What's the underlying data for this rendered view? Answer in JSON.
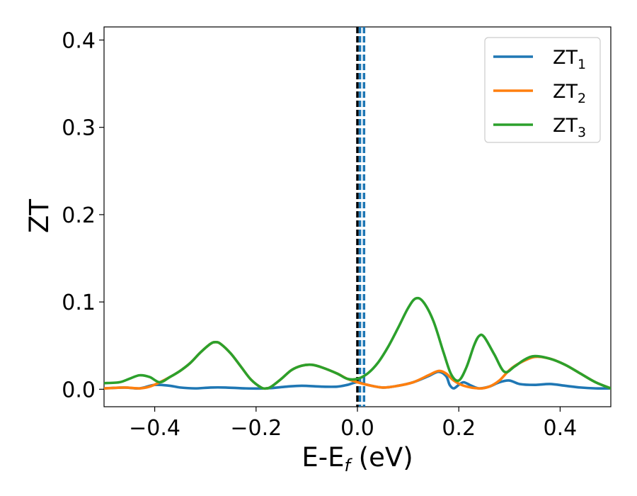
{
  "chart_data": {
    "type": "line",
    "xlabel": {
      "main": "E-E",
      "sub": "f",
      "unit": " (eV)"
    },
    "ylabel": "ZT",
    "xlim": [
      -0.5,
      0.5
    ],
    "ylim": [
      -0.02,
      0.415
    ],
    "xticks": [
      -0.4,
      -0.2,
      0.0,
      0.2,
      0.4
    ],
    "xtick_labels": [
      "−0.4",
      "−0.2",
      "0.0",
      "0.2",
      "0.4"
    ],
    "yticks": [
      0.0,
      0.1,
      0.2,
      0.3,
      0.4
    ],
    "ytick_labels": [
      "0.0",
      "0.1",
      "0.2",
      "0.3",
      "0.4"
    ],
    "grid": false,
    "legend_position": "top-right",
    "vlines": [
      {
        "x": 0.0,
        "color": "#000000",
        "style": "dashed"
      },
      {
        "x": 0.005,
        "color": "#1f77b4",
        "style": "dashed"
      },
      {
        "x": 0.013,
        "color": "#1f77b4",
        "style": "dashed"
      }
    ],
    "series": [
      {
        "name": "ZT",
        "sub": "1",
        "color": "#1f77b4",
        "points": [
          [
            -0.5,
            0.001
          ],
          [
            -0.46,
            0.002
          ],
          [
            -0.43,
            0.001
          ],
          [
            -0.4,
            0.005
          ],
          [
            -0.37,
            0.004
          ],
          [
            -0.35,
            0.002
          ],
          [
            -0.32,
            0.001
          ],
          [
            -0.29,
            0.002
          ],
          [
            -0.26,
            0.002
          ],
          [
            -0.22,
            0.001
          ],
          [
            -0.18,
            0.001
          ],
          [
            -0.14,
            0.003
          ],
          [
            -0.11,
            0.004
          ],
          [
            -0.07,
            0.003
          ],
          [
            -0.04,
            0.003
          ],
          [
            -0.02,
            0.005
          ],
          [
            0.0,
            0.008
          ],
          [
            0.02,
            0.005
          ],
          [
            0.05,
            0.002
          ],
          [
            0.08,
            0.004
          ],
          [
            0.11,
            0.008
          ],
          [
            0.14,
            0.015
          ],
          [
            0.16,
            0.02
          ],
          [
            0.175,
            0.015
          ],
          [
            0.182,
            0.005
          ],
          [
            0.19,
            0.001
          ],
          [
            0.2,
            0.005
          ],
          [
            0.21,
            0.008
          ],
          [
            0.225,
            0.004
          ],
          [
            0.24,
            0.001
          ],
          [
            0.26,
            0.003
          ],
          [
            0.28,
            0.008
          ],
          [
            0.3,
            0.01
          ],
          [
            0.32,
            0.006
          ],
          [
            0.35,
            0.005
          ],
          [
            0.38,
            0.006
          ],
          [
            0.41,
            0.004
          ],
          [
            0.44,
            0.002
          ],
          [
            0.47,
            0.001
          ],
          [
            0.5,
            0.001
          ]
        ]
      },
      {
        "name": "ZT",
        "sub": "2",
        "color": "#ff7f0e",
        "points": [
          [
            -0.5,
            0.001
          ],
          [
            -0.46,
            0.002
          ],
          [
            -0.43,
            0.001
          ],
          [
            -0.41,
            0.003
          ],
          [
            -0.39,
            0.008
          ],
          [
            -0.37,
            0.014
          ],
          [
            -0.35,
            0.021
          ],
          [
            -0.33,
            0.03
          ],
          [
            -0.31,
            0.042
          ],
          [
            -0.29,
            0.052
          ],
          [
            -0.28,
            0.054
          ],
          [
            -0.27,
            0.052
          ],
          [
            -0.25,
            0.041
          ],
          [
            -0.23,
            0.026
          ],
          [
            -0.21,
            0.011
          ],
          [
            -0.19,
            0.002
          ],
          [
            -0.18,
            0.001
          ],
          [
            -0.17,
            0.003
          ],
          [
            -0.15,
            0.012
          ],
          [
            -0.13,
            0.022
          ],
          [
            -0.11,
            0.027
          ],
          [
            -0.09,
            0.028
          ],
          [
            -0.07,
            0.025
          ],
          [
            -0.04,
            0.018
          ],
          [
            -0.02,
            0.012
          ],
          [
            0.0,
            0.008
          ],
          [
            0.02,
            0.005
          ],
          [
            0.05,
            0.002
          ],
          [
            0.08,
            0.004
          ],
          [
            0.11,
            0.008
          ],
          [
            0.14,
            0.016
          ],
          [
            0.16,
            0.021
          ],
          [
            0.175,
            0.018
          ],
          [
            0.19,
            0.01
          ],
          [
            0.21,
            0.004
          ],
          [
            0.24,
            0.001
          ],
          [
            0.26,
            0.003
          ],
          [
            0.28,
            0.01
          ],
          [
            0.3,
            0.022
          ],
          [
            0.32,
            0.03
          ],
          [
            0.35,
            0.037
          ],
          [
            0.38,
            0.035
          ],
          [
            0.41,
            0.028
          ],
          [
            0.44,
            0.018
          ],
          [
            0.47,
            0.008
          ],
          [
            0.5,
            0.001
          ]
        ]
      },
      {
        "name": "ZT",
        "sub": "3",
        "color": "#2ca02c",
        "points": [
          [
            -0.5,
            0.007
          ],
          [
            -0.47,
            0.008
          ],
          [
            -0.45,
            0.012
          ],
          [
            -0.43,
            0.016
          ],
          [
            -0.41,
            0.014
          ],
          [
            -0.39,
            0.008
          ],
          [
            -0.37,
            0.014
          ],
          [
            -0.35,
            0.021
          ],
          [
            -0.33,
            0.03
          ],
          [
            -0.31,
            0.042
          ],
          [
            -0.29,
            0.052
          ],
          [
            -0.28,
            0.054
          ],
          [
            -0.27,
            0.052
          ],
          [
            -0.25,
            0.041
          ],
          [
            -0.23,
            0.026
          ],
          [
            -0.21,
            0.011
          ],
          [
            -0.19,
            0.002
          ],
          [
            -0.18,
            0.001
          ],
          [
            -0.17,
            0.003
          ],
          [
            -0.15,
            0.012
          ],
          [
            -0.13,
            0.022
          ],
          [
            -0.11,
            0.027
          ],
          [
            -0.09,
            0.028
          ],
          [
            -0.07,
            0.025
          ],
          [
            -0.04,
            0.018
          ],
          [
            -0.02,
            0.012
          ],
          [
            0.0,
            0.012
          ],
          [
            0.02,
            0.018
          ],
          [
            0.04,
            0.03
          ],
          [
            0.06,
            0.048
          ],
          [
            0.08,
            0.07
          ],
          [
            0.1,
            0.093
          ],
          [
            0.115,
            0.104
          ],
          [
            0.13,
            0.1
          ],
          [
            0.15,
            0.078
          ],
          [
            0.17,
            0.042
          ],
          [
            0.185,
            0.017
          ],
          [
            0.2,
            0.01
          ],
          [
            0.215,
            0.025
          ],
          [
            0.23,
            0.05
          ],
          [
            0.24,
            0.061
          ],
          [
            0.25,
            0.06
          ],
          [
            0.27,
            0.04
          ],
          [
            0.29,
            0.02
          ],
          [
            0.31,
            0.026
          ],
          [
            0.33,
            0.034
          ],
          [
            0.35,
            0.038
          ],
          [
            0.38,
            0.035
          ],
          [
            0.41,
            0.028
          ],
          [
            0.44,
            0.018
          ],
          [
            0.47,
            0.008
          ],
          [
            0.5,
            0.001
          ]
        ]
      }
    ]
  }
}
